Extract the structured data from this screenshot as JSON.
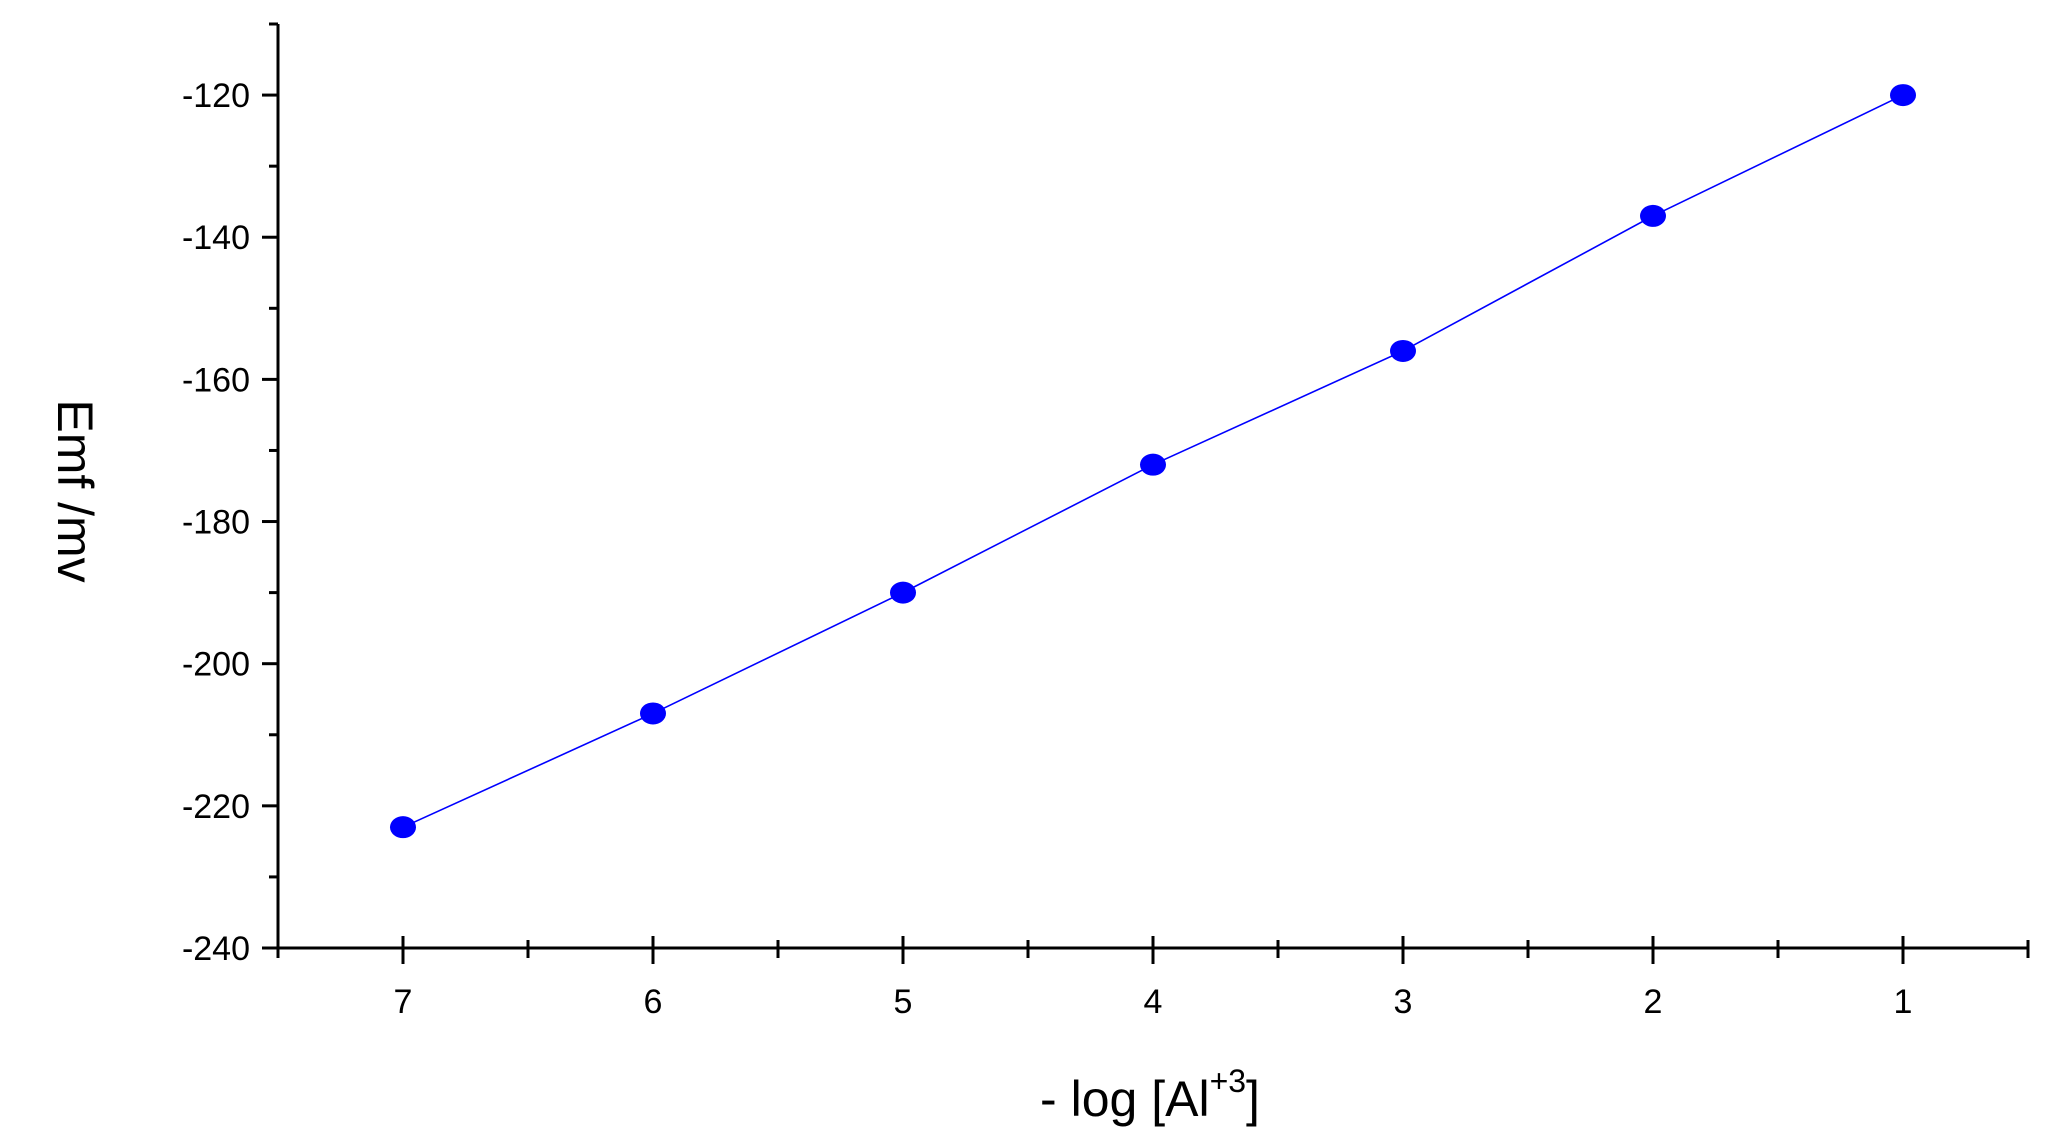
{
  "chart_data": {
    "type": "line",
    "title": "",
    "xlabel": {
      "prefix": "- log [Al",
      "superscript": "+3",
      "suffix": "]"
    },
    "ylabel": "Emf /mv",
    "x_reversed": true,
    "xlim": [
      7.5,
      0.5
    ],
    "ylim": [
      -240,
      -110
    ],
    "x_ticks": [
      7,
      6,
      5,
      4,
      3,
      2,
      1
    ],
    "x_tick_labels": [
      "7",
      "6",
      "5",
      "4",
      "3",
      "2",
      "1"
    ],
    "y_ticks": [
      -240,
      -220,
      -200,
      -180,
      -160,
      -140,
      -120
    ],
    "y_tick_labels": [
      "-240",
      "-220",
      "-200",
      "-180",
      "-160",
      "-140",
      "-120"
    ],
    "grid": false,
    "series": [
      {
        "x": [
          7,
          6,
          5,
          4,
          3,
          2,
          1
        ],
        "y": [
          -223,
          -207,
          -190,
          -172,
          -156,
          -137,
          -120
        ],
        "color": "#0000ff",
        "marker": "circle"
      }
    ]
  }
}
